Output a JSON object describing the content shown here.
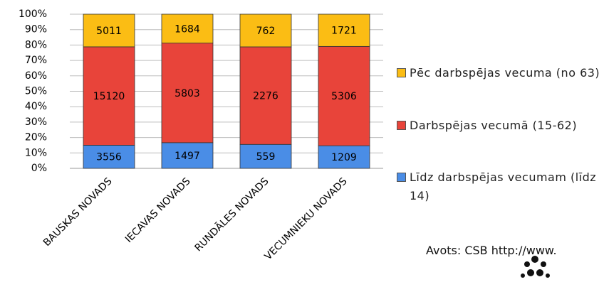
{
  "chart_data": {
    "type": "bar",
    "stacking": "percent",
    "categories": [
      "BAUSKAS NOVADS",
      "IECAVAS NOVADS",
      "RUNDĀLES NOVADS",
      "VECUMNIEKU NOVADS"
    ],
    "series": [
      {
        "name": "Līdz darbspējas vecumam (līdz 14)",
        "color": "#4a8de6",
        "values": [
          3556,
          1497,
          559,
          1209
        ]
      },
      {
        "name": "Darbspējas vecumā (15-62)",
        "color": "#e8443a",
        "values": [
          15120,
          5803,
          2276,
          5306
        ]
      },
      {
        "name": "Pēc darbspējas vecuma (no 63)",
        "color": "#fbbd14",
        "values": [
          5011,
          1684,
          762,
          1721
        ]
      }
    ],
    "ylim": [
      0,
      100
    ],
    "yticks": [
      {
        "value": 0,
        "label": "0%"
      },
      {
        "value": 10,
        "label": "10%"
      },
      {
        "value": 20,
        "label": "20%"
      },
      {
        "value": 30,
        "label": "30%"
      },
      {
        "value": 40,
        "label": "40%"
      },
      {
        "value": 50,
        "label": "50%"
      },
      {
        "value": 60,
        "label": "60%"
      },
      {
        "value": 70,
        "label": "70%"
      },
      {
        "value": 80,
        "label": "80%"
      },
      {
        "value": 90,
        "label": "90%"
      },
      {
        "value": 100,
        "label": "100%"
      }
    ],
    "grid": true,
    "legend": "right",
    "source": "Avots: CSB http://www."
  }
}
